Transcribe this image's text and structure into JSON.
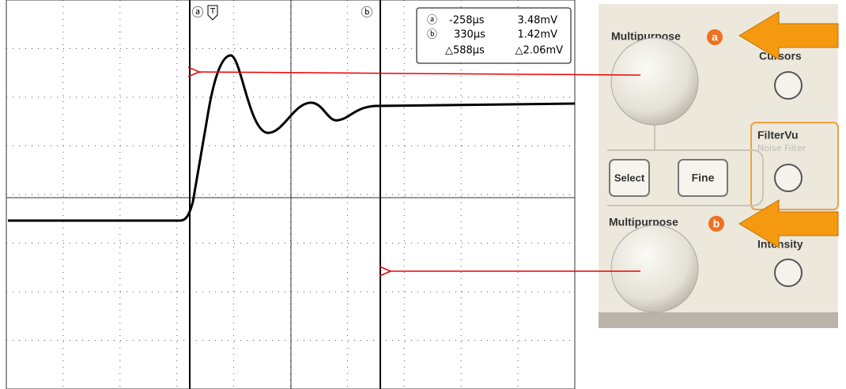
{
  "scope": {
    "cursor_a_marker": "ⓐ",
    "trigger_marker": "T",
    "cursor_b_marker": "ⓑ",
    "readout": {
      "a_label": "ⓐ",
      "a_time": "-258µs",
      "a_volt": "3.48mV",
      "b_label": "ⓑ",
      "b_time": "330µs",
      "b_volt": "1.42mV",
      "delta_time": "△588µs",
      "delta_volt": "△2.06mV"
    }
  },
  "panel": {
    "multipurpose_a": "Multipurpose",
    "a_badge": "a",
    "cursors": "Cursors",
    "filtervu": "FilterVu",
    "noise_filter": "Noise Filter",
    "select": "Select",
    "fine": "Fine",
    "multipurpose_b": "Multipurpose",
    "b_badge": "b",
    "intensity": "Intensity"
  }
}
